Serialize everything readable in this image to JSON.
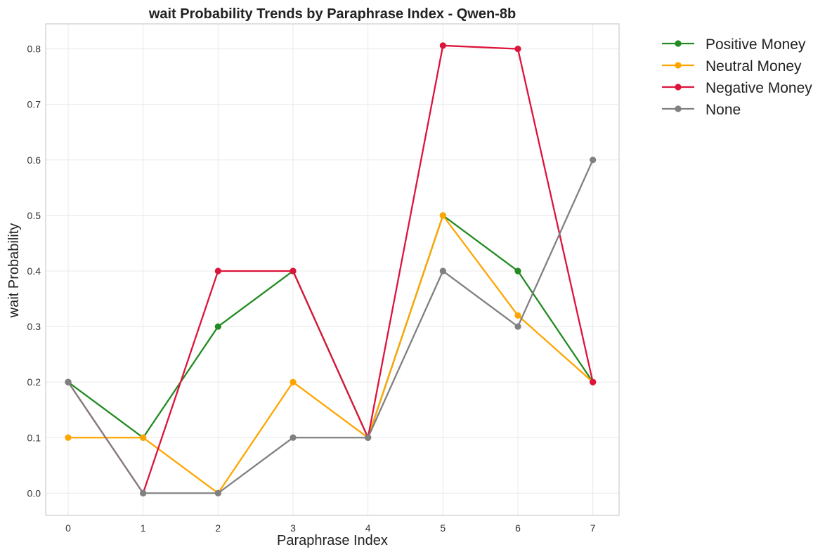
{
  "chart_data": {
    "type": "line",
    "title": "wait Probability Trends by Paraphrase Index - Qwen-8b",
    "xlabel": "Paraphrase Index",
    "ylabel": "wait Probability",
    "x": [
      0,
      1,
      2,
      3,
      4,
      5,
      6,
      7
    ],
    "x_ticks": [
      "0",
      "1",
      "2",
      "3",
      "4",
      "5",
      "6",
      "7"
    ],
    "y_ticks": [
      "0.0",
      "0.1",
      "0.2",
      "0.3",
      "0.4",
      "0.5",
      "0.6",
      "0.7",
      "0.8"
    ],
    "xlim": [
      -0.3,
      7.35
    ],
    "ylim": [
      -0.04,
      0.845
    ],
    "grid": true,
    "legend_position": "outside-right",
    "series": [
      {
        "name": "Positive Money",
        "color": "#228B22",
        "values": [
          0.2,
          0.1,
          0.3,
          0.4,
          0.1,
          0.5,
          0.4,
          0.2
        ]
      },
      {
        "name": "Neutral Money",
        "color": "#FFA500",
        "values": [
          0.1,
          0.1,
          0.0,
          0.2,
          0.1,
          0.5,
          0.32,
          0.2
        ]
      },
      {
        "name": "Negative Money",
        "color": "#DC143C",
        "values": [
          0.2,
          0.0,
          0.4,
          0.4,
          0.1,
          0.806,
          0.8,
          0.2
        ]
      },
      {
        "name": "None",
        "color": "#808080",
        "values": [
          0.2,
          0.0,
          0.0,
          0.1,
          0.1,
          0.4,
          0.3,
          0.6
        ]
      }
    ]
  }
}
